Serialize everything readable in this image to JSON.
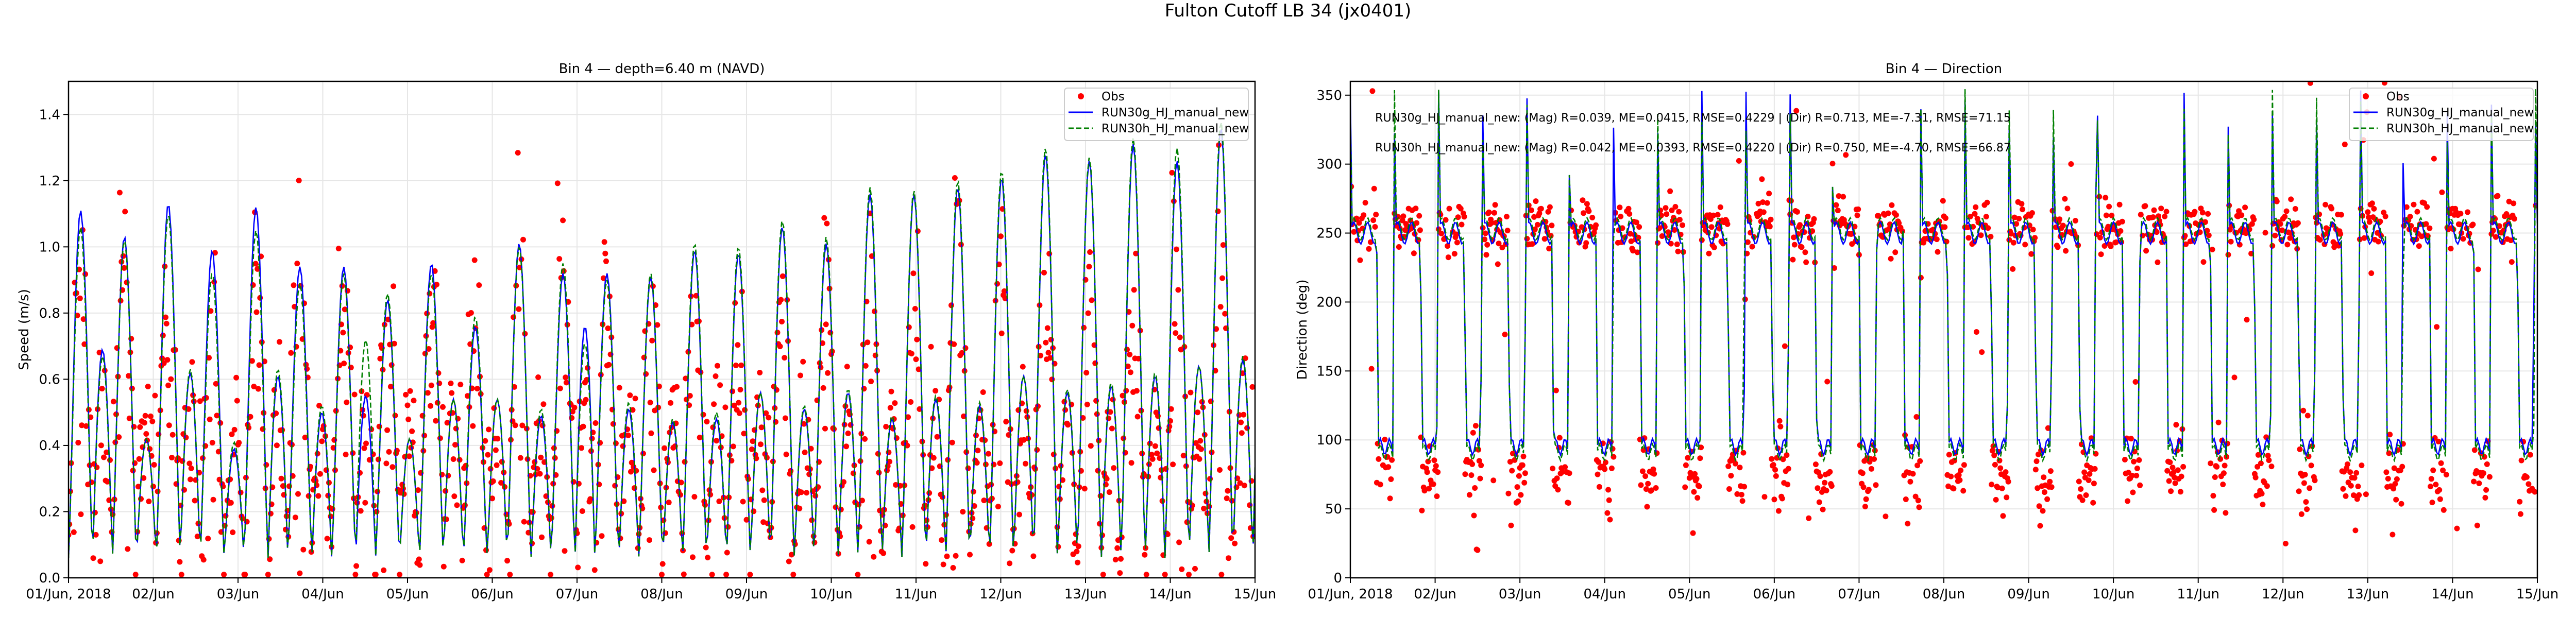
{
  "figure": {
    "suptitle": "Fulton Cutoff LB 34 (jx0401)"
  },
  "chart_data": [
    {
      "type": "line",
      "title": "Bin 4 — depth=6.40 m (NAVD)",
      "xlabel": "",
      "ylabel": "Speed (m/s)",
      "ylim": [
        0,
        1.5
      ],
      "yticks": [
        0.0,
        0.2,
        0.4,
        0.6,
        0.8,
        1.0,
        1.2,
        1.4
      ],
      "ytick_labels": [
        "0.0",
        "0.2",
        "0.4",
        "0.6",
        "0.8",
        "1.0",
        "1.2",
        "1.4"
      ],
      "xlim_days": [
        0,
        14
      ],
      "xtick_labels": [
        "01/Jun, 2018",
        "02/Jun",
        "03/Jun",
        "04/Jun",
        "05/Jun",
        "06/Jun",
        "07/Jun",
        "08/Jun",
        "09/Jun",
        "10/Jun",
        "11/Jun",
        "12/Jun",
        "13/Jun",
        "14/Jun",
        "15/Jun"
      ],
      "grid": true,
      "legend": {
        "placement": "top-right",
        "entries": [
          "Obs",
          "RUN30g_HJ_manual_new",
          "RUN30h_HJ_manual_new"
        ]
      },
      "tidal_period_hours": 12.42,
      "series": [
        {
          "name": "Obs",
          "style": "scatter",
          "color": "#ff0000",
          "cycle_flood_peaks": [
            1.24,
            1.12,
            1.08,
            1.05,
            1.13,
            1.2,
            1.02,
            1.08,
            1.12,
            1.05,
            1.1,
            1.14,
            1.05,
            1.0,
            1.12,
            1.02,
            1.1,
            1.06,
            1.1,
            1.12,
            1.15,
            1.18,
            1.22,
            1.15,
            1.2,
            1.25,
            1.3
          ]
        },
        {
          "name": "RUN30g_HJ_manual_new",
          "style": "solid",
          "color": "#0000ff",
          "cycle_flood_peaks": [
            1.05,
            0.97,
            1.07,
            0.93,
            1.06,
            0.88,
            0.88,
            0.78,
            0.89,
            0.7,
            0.95,
            0.86,
            0.86,
            0.85,
            0.93,
            0.92,
            1.0,
            0.95,
            1.1,
            1.1,
            1.12,
            1.15,
            1.22,
            1.2,
            1.25,
            1.2,
            1.3
          ],
          "cycle_ebb_peaks": [
            0.63,
            0.36,
            0.56,
            0.33,
            0.55,
            0.44,
            0.49,
            0.36,
            0.48,
            0.48,
            0.43,
            0.7,
            0.45,
            0.41,
            0.42,
            0.5,
            0.45,
            0.5,
            0.42,
            0.48,
            0.46,
            0.55,
            0.5,
            0.52,
            0.55,
            0.58,
            0.6
          ]
        },
        {
          "name": "RUN30h_HJ_manual_new",
          "style": "dashed",
          "color": "#008000",
          "cycle_flood_peaks": [
            1.0,
            0.96,
            1.04,
            0.86,
            0.99,
            0.83,
            0.86,
            0.8,
            0.86,
            0.73,
            0.94,
            0.89,
            0.84,
            0.86,
            0.95,
            0.94,
            1.02,
            0.97,
            1.12,
            1.11,
            1.14,
            1.17,
            1.24,
            1.21,
            1.27,
            1.24,
            1.32
          ],
          "cycle_ebb_peaks": [
            0.61,
            0.36,
            0.57,
            0.35,
            0.57,
            0.46,
            0.66,
            0.36,
            0.48,
            0.48,
            0.45,
            0.65,
            0.47,
            0.42,
            0.44,
            0.5,
            0.46,
            0.51,
            0.43,
            0.49,
            0.47,
            0.55,
            0.51,
            0.53,
            0.56,
            0.58,
            0.61
          ]
        }
      ]
    },
    {
      "type": "line",
      "title": "Bin 4 — Direction",
      "xlabel": "",
      "ylabel": "Direction (deg)",
      "ylim": [
        0,
        360
      ],
      "yticks": [
        0,
        50,
        100,
        150,
        200,
        250,
        300,
        350
      ],
      "ytick_labels": [
        "0",
        "50",
        "100",
        "150",
        "200",
        "250",
        "300",
        "350"
      ],
      "xlim_days": [
        0,
        14
      ],
      "xtick_labels": [
        "01/Jun, 2018",
        "02/Jun",
        "03/Jun",
        "04/Jun",
        "05/Jun",
        "06/Jun",
        "07/Jun",
        "08/Jun",
        "09/Jun",
        "10/Jun",
        "11/Jun",
        "12/Jun",
        "13/Jun",
        "14/Jun",
        "15/Jun"
      ],
      "grid": true,
      "legend": {
        "placement": "top-right",
        "entries": [
          "Obs",
          "RUN30g_HJ_manual_new",
          "RUN30h_HJ_manual_new"
        ]
      },
      "flood_direction_deg": 255,
      "ebb_direction_deg": 75,
      "model_ebb_direction_deg": 95,
      "annotations": [
        "RUN30g_HJ_manual_new: (Mag) R=0.039, ME=0.0415, RMSE=0.4229 | (Dir) R=0.713, ME=-7.31, RMSE=71.15",
        "RUN30h_HJ_manual_new: (Mag) R=0.042, ME=0.0393, RMSE=0.4220 | (Dir) R=0.750, ME=-4.70, RMSE=66.87"
      ],
      "series": [
        {
          "name": "Obs",
          "style": "scatter",
          "color": "#ff0000"
        },
        {
          "name": "RUN30g_HJ_manual_new",
          "style": "solid",
          "color": "#0000ff"
        },
        {
          "name": "RUN30h_HJ_manual_new",
          "style": "dashed",
          "color": "#008000"
        }
      ]
    }
  ]
}
